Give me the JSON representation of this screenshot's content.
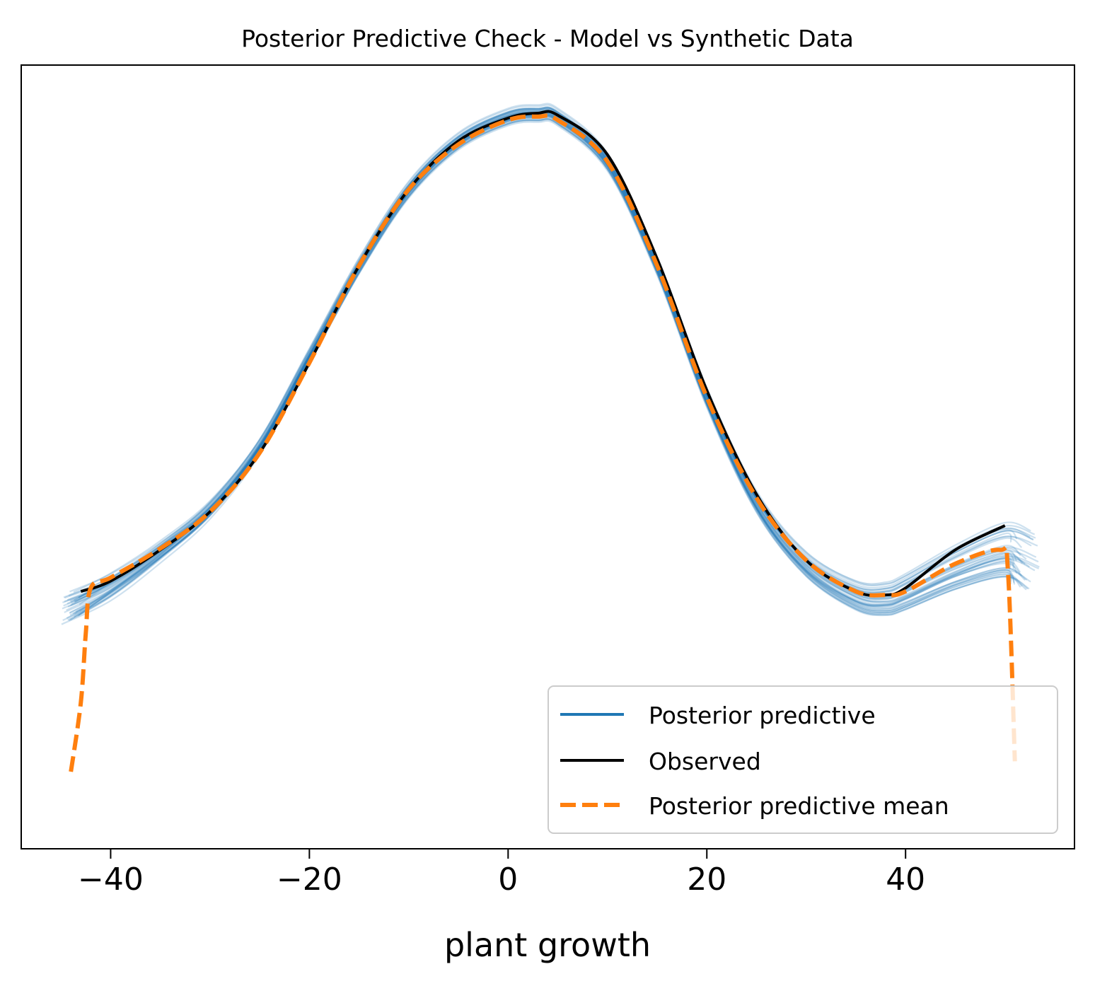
{
  "chart_data": {
    "type": "line",
    "title": "Posterior Predictive Check - Model vs Synthetic Data",
    "xlabel": "plant growth",
    "ylabel": "",
    "xlim": [
      -49,
      57
    ],
    "ylim": [
      0,
      1
    ],
    "x_ticks": [
      -40,
      -20,
      0,
      20,
      40
    ],
    "x_tick_labels": [
      "−40",
      "−20",
      "0",
      "20",
      "40"
    ],
    "y_ticks_visible": false,
    "grid": false,
    "legend_position": "lower-right",
    "colors": {
      "posterior_predictive": "#1f77b4",
      "observed": "#000000",
      "posterior_predictive_mean": "#ff7f0e"
    },
    "series": [
      {
        "name": "Posterior predictive",
        "style": "solid",
        "note_samples": 40,
        "x": [
          -44,
          -40,
          -35,
          -30,
          -25,
          -20,
          -15,
          -10,
          -5,
          0,
          3,
          5,
          10,
          15,
          20,
          25,
          30,
          35,
          38,
          40,
          45,
          50,
          52
        ],
        "y": [
          0.29,
          0.32,
          0.37,
          0.43,
          0.52,
          0.65,
          0.78,
          0.89,
          0.96,
          0.995,
          1.0,
          0.995,
          0.93,
          0.78,
          0.59,
          0.44,
          0.35,
          0.305,
          0.3,
          0.31,
          0.345,
          0.37,
          0.355
        ]
      },
      {
        "name": "Observed",
        "style": "solid",
        "x": [
          -43,
          -40,
          -35,
          -30,
          -25,
          -20,
          -15,
          -10,
          -5,
          0,
          3,
          5,
          10,
          15,
          20,
          25,
          30,
          35,
          38,
          40,
          45,
          50
        ],
        "y": [
          0.31,
          0.325,
          0.37,
          0.425,
          0.51,
          0.64,
          0.78,
          0.89,
          0.96,
          0.993,
          1.0,
          0.997,
          0.94,
          0.79,
          0.6,
          0.45,
          0.355,
          0.31,
          0.305,
          0.315,
          0.37,
          0.405
        ]
      },
      {
        "name": "Posterior predictive mean",
        "style": "dashed",
        "x": [
          -44,
          -43,
          -42.5,
          -42,
          -40,
          -35,
          -30,
          -25,
          -20,
          -15,
          -10,
          -5,
          0,
          3,
          5,
          10,
          15,
          20,
          25,
          30,
          35,
          38,
          40,
          45,
          49.5,
          50.3,
          51
        ],
        "y": [
          0.05,
          0.15,
          0.25,
          0.315,
          0.33,
          0.372,
          0.425,
          0.51,
          0.64,
          0.78,
          0.89,
          0.955,
          0.99,
          0.995,
          0.99,
          0.93,
          0.78,
          0.59,
          0.445,
          0.355,
          0.31,
          0.305,
          0.31,
          0.35,
          0.37,
          0.34,
          0.065
        ]
      }
    ]
  }
}
